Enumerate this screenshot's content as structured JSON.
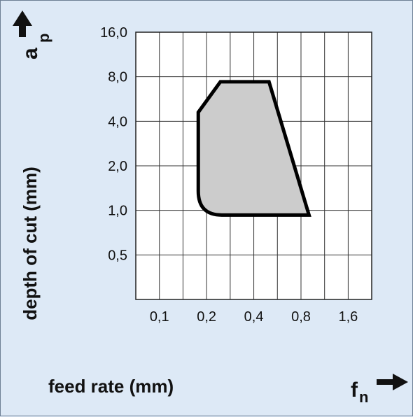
{
  "chart_data": {
    "type": "area",
    "title": "",
    "xlabel": "feed rate (mm)",
    "ylabel": "depth of cut (mm)",
    "x_symbol": "f",
    "x_symbol_sub": "n",
    "y_symbol": "a",
    "y_symbol_sub": "p",
    "x_scale": "log2",
    "y_scale": "log2",
    "xlim": [
      0.0707,
      2.26
    ],
    "ylim": [
      0.25,
      16.0
    ],
    "x_ticks": [
      0.1,
      0.2,
      0.4,
      0.8,
      1.6
    ],
    "x_tick_labels": [
      "0,1",
      "0,2",
      "0,4",
      "0,8",
      "1,6"
    ],
    "y_ticks": [
      0.5,
      1.0,
      2.0,
      4.0,
      8.0,
      16.0
    ],
    "y_tick_labels": [
      "0,5",
      "1,0",
      "2,0",
      "4,0",
      "8,0",
      "16,0"
    ],
    "grid": true,
    "region": {
      "fill": "#cccccc",
      "stroke": "#000000",
      "points": [
        {
          "x": 0.177,
          "y": 4.6
        },
        {
          "x": 0.245,
          "y": 7.4
        },
        {
          "x": 0.5,
          "y": 7.4
        },
        {
          "x": 0.9,
          "y": 0.93
        },
        {
          "x": 0.25,
          "y": 0.93
        },
        {
          "x": 0.177,
          "y": 1.35
        }
      ]
    }
  },
  "colors": {
    "background": "#dde9f6",
    "plot_background": "#ffffff",
    "grid": "#333333",
    "region_fill": "#cccccc",
    "region_stroke": "#000000"
  },
  "icons": {
    "x_arrow": "arrow-right-icon",
    "y_arrow": "arrow-up-icon"
  }
}
